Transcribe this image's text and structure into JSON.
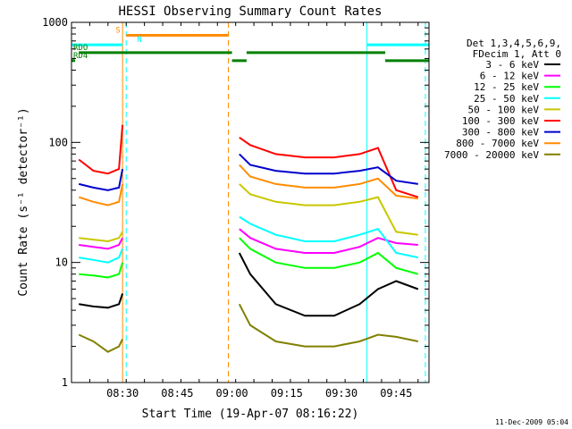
{
  "chart_data": {
    "type": "line",
    "title": "HESSI Observing Summary Count Rates",
    "xlabel": "Start Time (19-Apr-07 08:16:22)",
    "ylabel": "Count Rate (s⁻¹ detector⁻¹)",
    "xlim": [
      "08:16",
      "09:54"
    ],
    "ylim": [
      1,
      1000
    ],
    "yscale": "log",
    "x_ticks": [
      "08:30",
      "08:45",
      "09:00",
      "09:15",
      "09:30",
      "09:45"
    ],
    "y_ticks": [
      "1",
      "10",
      "100",
      "1000"
    ],
    "legend_position": "right",
    "legend_header": [
      "Det 1,3,4,5,6,9,",
      "FDecim 1, Att 0"
    ],
    "series": [
      {
        "name": "3 - 6 keV",
        "color": "#000000",
        "x": [
          "08:18",
          "08:22",
          "08:26",
          "08:29",
          "08:30",
          "09:02",
          "09:05",
          "09:12",
          "09:20",
          "09:28",
          "09:35",
          "09:40",
          "09:45",
          "09:51"
        ],
        "y": [
          4.5,
          4.3,
          4.2,
          4.5,
          5.5,
          12,
          8,
          4.5,
          3.6,
          3.6,
          4.5,
          6,
          7,
          6
        ]
      },
      {
        "name": "6 - 12 keV",
        "color": "#ff00ff",
        "x": [
          "08:18",
          "08:22",
          "08:26",
          "08:29",
          "08:30",
          "09:02",
          "09:05",
          "09:12",
          "09:20",
          "09:28",
          "09:35",
          "09:40",
          "09:45",
          "09:51"
        ],
        "y": [
          14,
          13.5,
          13,
          14,
          16,
          19,
          16,
          13,
          12,
          12,
          13.5,
          16,
          14.5,
          14
        ]
      },
      {
        "name": "12 - 25 keV",
        "color": "#00ff00",
        "x": [
          "08:18",
          "08:22",
          "08:26",
          "08:29",
          "08:30",
          "09:02",
          "09:05",
          "09:12",
          "09:20",
          "09:28",
          "09:35",
          "09:40",
          "09:45",
          "09:51"
        ],
        "y": [
          8,
          7.8,
          7.5,
          8,
          10,
          16,
          13,
          10,
          9,
          9,
          10,
          12,
          9,
          8
        ]
      },
      {
        "name": "25 - 50 keV",
        "color": "#00ffff",
        "x": [
          "08:18",
          "08:22",
          "08:26",
          "08:29",
          "08:30",
          "09:02",
          "09:05",
          "09:12",
          "09:20",
          "09:28",
          "09:35",
          "09:40",
          "09:45",
          "09:51"
        ],
        "y": [
          11,
          10.5,
          10,
          11,
          13,
          24,
          21,
          17,
          15,
          15,
          17,
          19,
          12,
          11
        ]
      },
      {
        "name": "50 - 100 keV",
        "color": "#c8c800",
        "x": [
          "08:18",
          "08:22",
          "08:26",
          "08:29",
          "08:30",
          "09:02",
          "09:05",
          "09:12",
          "09:20",
          "09:28",
          "09:35",
          "09:40",
          "09:45",
          "09:51"
        ],
        "y": [
          16,
          15.5,
          15,
          16,
          18,
          45,
          37,
          32,
          30,
          30,
          32,
          35,
          18,
          17
        ]
      },
      {
        "name": "100 - 300 keV",
        "color": "#ff0000",
        "x": [
          "08:18",
          "08:22",
          "08:26",
          "08:29",
          "08:30",
          "09:02",
          "09:05",
          "09:12",
          "09:20",
          "09:28",
          "09:35",
          "09:40",
          "09:45",
          "09:51"
        ],
        "y": [
          72,
          58,
          55,
          60,
          140,
          110,
          95,
          80,
          75,
          75,
          80,
          90,
          40,
          35
        ]
      },
      {
        "name": "300 - 800 keV",
        "color": "#0000cd",
        "x": [
          "08:18",
          "08:22",
          "08:26",
          "08:29",
          "08:30",
          "09:02",
          "09:05",
          "09:12",
          "09:20",
          "09:28",
          "09:35",
          "09:40",
          "09:45",
          "09:51"
        ],
        "y": [
          45,
          42,
          40,
          42,
          60,
          80,
          65,
          58,
          55,
          55,
          58,
          62,
          48,
          45
        ]
      },
      {
        "name": "800 - 7000 keV",
        "color": "#ff8c00",
        "x": [
          "08:18",
          "08:22",
          "08:26",
          "08:29",
          "08:30",
          "09:02",
          "09:05",
          "09:12",
          "09:20",
          "09:28",
          "09:35",
          "09:40",
          "09:45",
          "09:51"
        ],
        "y": [
          35,
          32,
          30,
          32,
          45,
          65,
          52,
          45,
          42,
          42,
          45,
          50,
          36,
          34
        ]
      },
      {
        "name": "7000 - 20000 keV",
        "color": "#808000",
        "x": [
          "08:18",
          "08:22",
          "08:26",
          "08:29",
          "08:30",
          "09:02",
          "09:05",
          "09:12",
          "09:20",
          "09:28",
          "09:35",
          "09:40",
          "09:45",
          "09:51"
        ],
        "y": [
          2.5,
          2.2,
          1.8,
          2.0,
          2.3,
          4.5,
          3,
          2.2,
          2,
          2,
          2.2,
          2.5,
          2.4,
          2.2
        ]
      }
    ],
    "flag_bars": [
      {
        "label": "S",
        "color": "#ff8c00",
        "y": 780,
        "spans": [
          [
            "08:31",
            "08:59"
          ]
        ]
      },
      {
        "label": "",
        "color": "#00ffff",
        "y": 650,
        "spans": [
          [
            "08:16",
            "08:30"
          ],
          [
            "09:37",
            "09:54"
          ]
        ]
      },
      {
        "label": "N",
        "color": "#00ffff",
        "y": 650,
        "spans": []
      },
      {
        "label": "RDO",
        "color": "#008000",
        "y": 560,
        "spans": [
          [
            "08:18",
            "09:00"
          ],
          [
            "09:04",
            "09:42"
          ]
        ]
      },
      {
        "label": "RD4",
        "color": "#008000",
        "y": 480,
        "spans": [
          [
            "08:16",
            "08:17"
          ],
          [
            "09:00",
            "09:04"
          ],
          [
            "09:42",
            "09:54"
          ]
        ]
      }
    ],
    "vertical_markers": [
      {
        "x": "08:16",
        "color": "#00ffff",
        "style": "solid"
      },
      {
        "x": "08:30",
        "color": "#ff8c00",
        "style": "solid"
      },
      {
        "x": "08:31",
        "color": "#00ffff",
        "style": "dashed"
      },
      {
        "x": "08:59",
        "color": "#ff8c00",
        "style": "dashed"
      },
      {
        "x": "09:37",
        "color": "#00ffff",
        "style": "solid"
      },
      {
        "x": "09:53",
        "color": "#00ffff",
        "style": "dashed"
      }
    ],
    "gap": [
      "08:59",
      "09:01"
    ],
    "footer_date": "11-Dec-2009 05:04"
  }
}
